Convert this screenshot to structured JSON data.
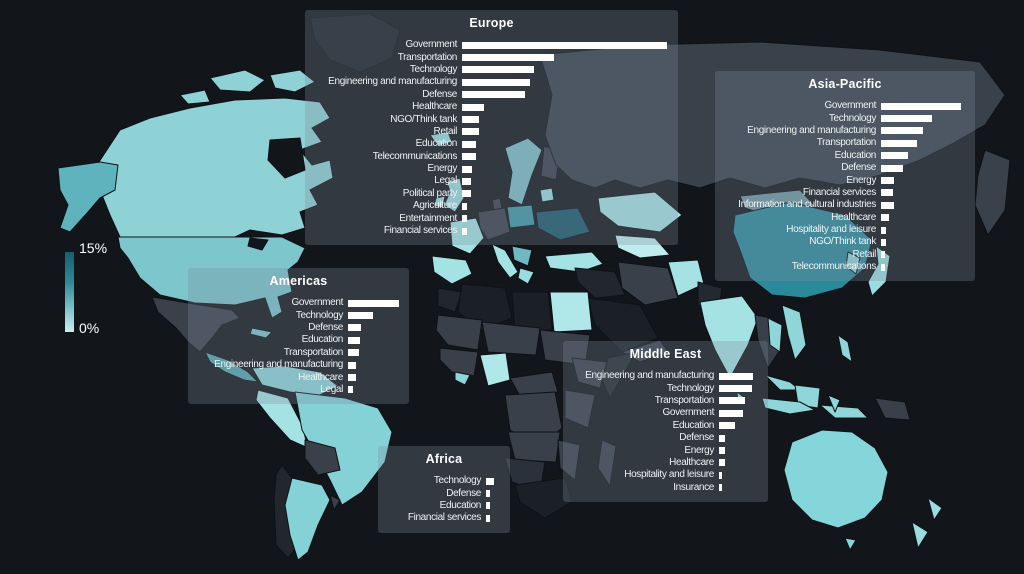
{
  "legend": {
    "max_label": "15%",
    "min_label": "0%"
  },
  "colors": {
    "background": "#12161a",
    "panel_overlay": "rgba(125,138,156,0.30)",
    "bar_fill": "#ffffff",
    "text": "#f4f7f8",
    "choropleth_high": "#14606e",
    "choropleth_mid": "#2e8a98",
    "choropleth_low": "#c9eff0",
    "country_no_data_gray": "#39414b",
    "country_no_data_dark": "#1b2026"
  },
  "chart_data": [
    {
      "type": "bar",
      "orientation": "horizontal",
      "region_key": "europe",
      "title": "Europe",
      "value_scale": "relative bar length in px (no numeric axis shown)",
      "categories": [
        "Government",
        "Transportation",
        "Technology",
        "Engineering and manufacturing",
        "Defense",
        "Healthcare",
        "NGO/Think tank",
        "Retail",
        "Education",
        "Telecommunications",
        "Energy",
        "Legal",
        "Political party",
        "Agriculture",
        "Entertainment",
        "Financial services"
      ],
      "values": [
        205,
        92,
        72,
        68,
        63,
        22,
        17,
        17,
        14,
        14,
        10,
        9,
        9,
        5,
        5,
        5
      ]
    },
    {
      "type": "bar",
      "orientation": "horizontal",
      "region_key": "asia",
      "title": "Asia-Pacific",
      "value_scale": "relative bar length in px (no numeric axis shown)",
      "categories": [
        "Government",
        "Technology",
        "Engineering and manufacturing",
        "Transportation",
        "Education",
        "Defense",
        "Energy",
        "Financial services",
        "Information and cultural industries",
        "Healthcare",
        "Hospitality and leisure",
        "NGO/Think tank",
        "Retail",
        "Telecommunications"
      ],
      "values": [
        80,
        51,
        42,
        36,
        27,
        22,
        13,
        12,
        13,
        8,
        5,
        5,
        4,
        4
      ]
    },
    {
      "type": "bar",
      "orientation": "horizontal",
      "region_key": "americas",
      "title": "Americas",
      "value_scale": "relative bar length in px (no numeric axis shown)",
      "categories": [
        "Government",
        "Technology",
        "Defense",
        "Education",
        "Transportation",
        "Engineering and manufacturing",
        "Healthcare",
        "Legal"
      ],
      "values": [
        51,
        25,
        13,
        12,
        11,
        8,
        8,
        5
      ]
    },
    {
      "type": "bar",
      "orientation": "horizontal",
      "region_key": "mideast",
      "title": "Middle East",
      "value_scale": "relative bar length in px (no numeric axis shown)",
      "categories": [
        "Engineering and manufacturing",
        "Technology",
        "Transportation",
        "Government",
        "Education",
        "Defense",
        "Energy",
        "Healthcare",
        "Hospitality and leisure",
        "Insurance"
      ],
      "values": [
        34,
        33,
        26,
        24,
        16,
        6,
        6,
        6,
        3,
        3
      ]
    },
    {
      "type": "bar",
      "orientation": "horizontal",
      "region_key": "africa",
      "title": "Africa",
      "value_scale": "relative bar length in px (no numeric axis shown)",
      "categories": [
        "Technology",
        "Defense",
        "Education",
        "Financial services"
      ],
      "values": [
        8,
        4,
        4,
        4
      ]
    },
    {
      "type": "heatmap",
      "subtype": "world-choropleth",
      "title": "",
      "legend": {
        "position": "left",
        "min": "0%",
        "max": "15%"
      },
      "description": "World map shaded per country from light teal (low %) to dark teal (high %); gray/near-black countries unshaded"
    }
  ]
}
